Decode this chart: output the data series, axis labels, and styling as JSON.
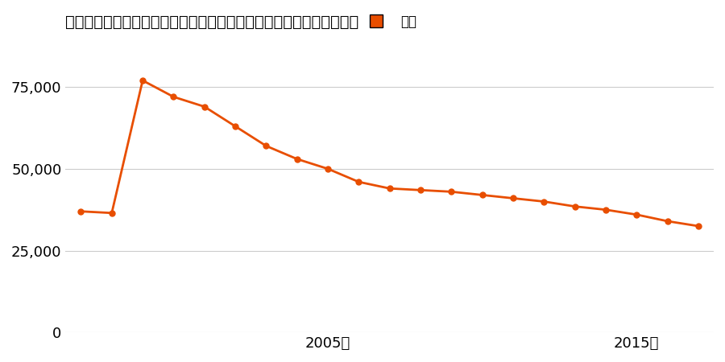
{
  "title": "和歌山県伊都郡かつらぎ町大字三谷字金毘羅１６１２番８の地価推移",
  "legend_label": "価格",
  "line_color": "#e84e00",
  "marker_color": "#e84e00",
  "background_color": "#ffffff",
  "years": [
    1997,
    1998,
    1999,
    2000,
    2001,
    2002,
    2003,
    2004,
    2005,
    2006,
    2007,
    2008,
    2009,
    2010,
    2011,
    2012,
    2013,
    2014,
    2015,
    2016,
    2017
  ],
  "values": [
    37000,
    36500,
    77000,
    72000,
    69000,
    63000,
    57000,
    53000,
    50000,
    46000,
    44000,
    43500,
    43000,
    42000,
    41000,
    40000,
    38500,
    37500,
    36000,
    34000,
    32500
  ],
  "ylim": [
    0,
    90000
  ],
  "yticks": [
    0,
    25000,
    50000,
    75000
  ],
  "xtick_years": [
    2005,
    2015
  ],
  "grid_color": "#cccccc",
  "title_fontsize": 14,
  "legend_fontsize": 12,
  "tick_fontsize": 13
}
